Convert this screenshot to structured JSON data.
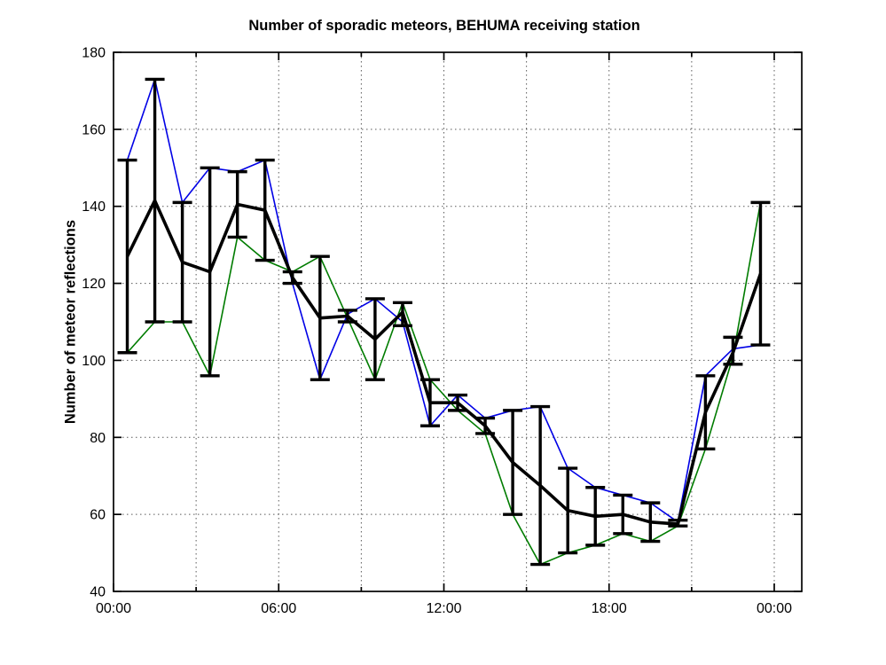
{
  "figure": {
    "background": "#ffffff"
  },
  "chart_data": {
    "type": "line",
    "title": "Number of sporadic meteors, BEHUMA receiving station",
    "ylabel": "Number of meteor reflections",
    "xlabel": "",
    "grid": true,
    "legend": "none",
    "ylim": [
      40,
      180
    ],
    "xlim_hours": [
      0,
      25
    ],
    "y_tick_values": [
      40,
      60,
      80,
      100,
      120,
      140,
      160,
      180
    ],
    "y_tick_labels": [
      "40",
      "60",
      "80",
      "100",
      "120",
      "140",
      "160",
      "180"
    ],
    "y_grid_values": [
      60,
      80,
      100,
      120,
      140,
      160
    ],
    "x_major_tick_hours": [
      0,
      6,
      12,
      18,
      24
    ],
    "x_tick_labels": [
      "00:00",
      "06:00",
      "12:00",
      "18:00",
      "00:00"
    ],
    "x_minor_tick_hours": [
      3,
      9,
      15,
      21
    ],
    "x_grid_hours": [
      3,
      6,
      9,
      12,
      15,
      18,
      21,
      24
    ],
    "hours": [
      0.5,
      1.5,
      2.5,
      3.5,
      4.5,
      5.5,
      6.5,
      7.5,
      8.5,
      9.5,
      10.5,
      11.5,
      12.5,
      13.5,
      14.5,
      15.5,
      16.5,
      17.5,
      18.5,
      19.5,
      20.5,
      21.5,
      22.5,
      23.5
    ],
    "series": [
      {
        "name": "day-curve-upper",
        "color": "#0000e6",
        "line_width": 1.6,
        "values": [
          152,
          173,
          141,
          150,
          149,
          152,
          120,
          95,
          112,
          116,
          110,
          83,
          91,
          85,
          87,
          88,
          72,
          67,
          65,
          63,
          58,
          96,
          103,
          104
        ]
      },
      {
        "name": "day-curve-lower",
        "color": "#007c00",
        "line_width": 1.6,
        "values": [
          102,
          110,
          110,
          96,
          132,
          126,
          123,
          127,
          111,
          95,
          115,
          95,
          87,
          81,
          60,
          47,
          50,
          52,
          55,
          53,
          57,
          77,
          101,
          141
        ]
      },
      {
        "name": "mean-curve",
        "color": "#000000",
        "line_width": 3.6,
        "values": [
          127,
          141.5,
          125.5,
          123,
          140.5,
          139,
          121.5,
          111,
          111.5,
          105.5,
          112.5,
          89,
          89,
          83,
          73.5,
          67.5,
          61,
          59.5,
          60,
          58,
          57.5,
          86.5,
          102,
          122.5
        ]
      }
    ],
    "error_bars": {
      "color": "#000000",
      "line_width": 3.4,
      "cap_width": 22,
      "high": [
        152,
        173,
        141,
        150,
        149,
        152,
        123,
        127,
        113,
        116,
        115,
        95,
        91,
        85,
        87,
        88,
        72,
        67,
        65,
        63,
        58.5,
        96,
        106,
        141
      ],
      "low": [
        102,
        110,
        110,
        96,
        132,
        126,
        120,
        95,
        110,
        95,
        109,
        83,
        87,
        81,
        60,
        47,
        50,
        52,
        55,
        53,
        57,
        77,
        99,
        104
      ]
    },
    "axes": {
      "box_color": "#000000",
      "grid_color": "#5a5a5a",
      "grid_style": "dotted",
      "tick_direction": "in"
    }
  }
}
